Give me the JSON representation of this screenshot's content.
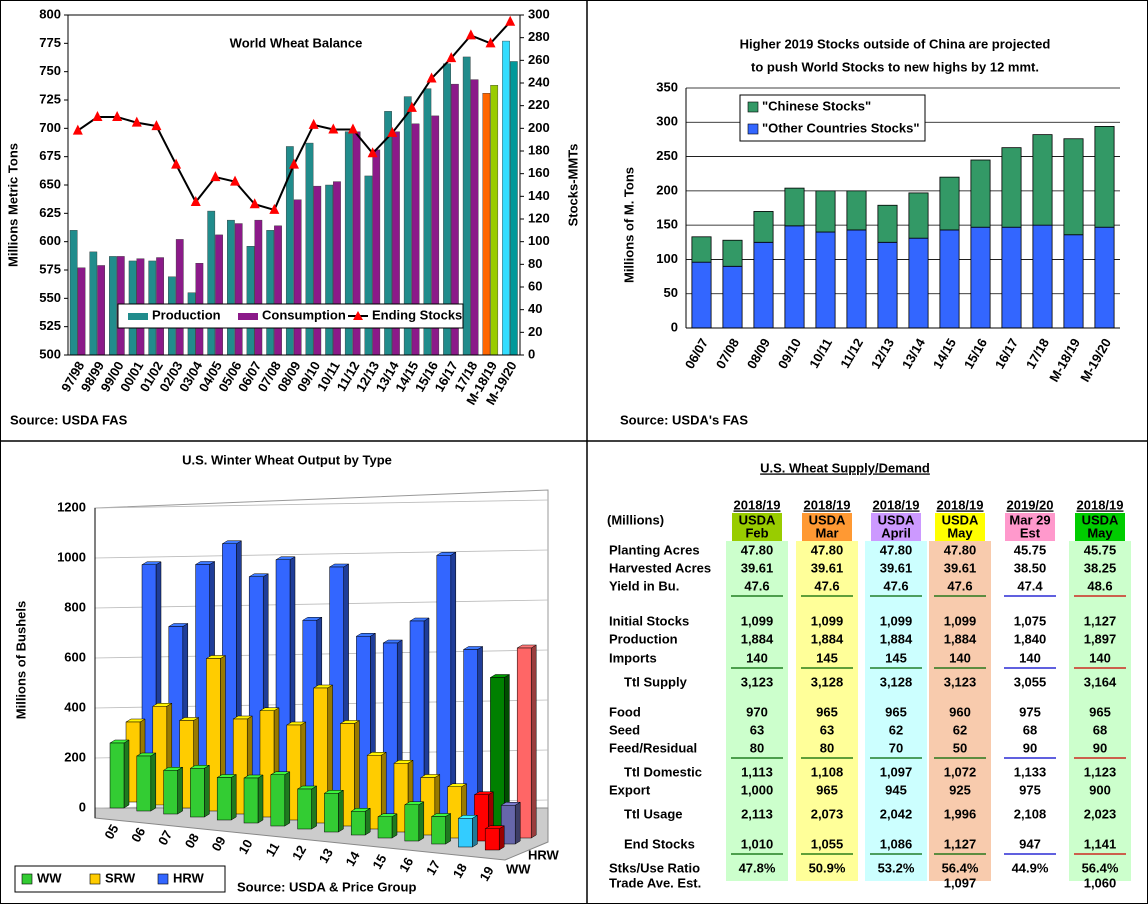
{
  "chart_data": [
    {
      "type": "bar_line",
      "title": "World Wheat Balance",
      "source": "Source: USDA FAS",
      "ylabel": "Millions Metric Tons",
      "y2label": "Stocks-MMTs",
      "categories": [
        "97/98",
        "98/99",
        "99/00",
        "00/01",
        "01/02",
        "02/03",
        "03/04",
        "04/05",
        "05/06",
        "06/07",
        "07/08",
        "08/09",
        "09/10",
        "10/11",
        "11/12",
        "12/13",
        "13/14",
        "14/15",
        "15/16",
        "16/17",
        "17/18",
        "M-18/19",
        "M-19/20"
      ],
      "series": [
        {
          "name": "Production",
          "color": "#218c8c",
          "colors": [
            "#218c8c",
            "#218c8c",
            "#218c8c",
            "#218c8c",
            "#218c8c",
            "#218c8c",
            "#218c8c",
            "#218c8c",
            "#218c8c",
            "#218c8c",
            "#218c8c",
            "#218c8c",
            "#218c8c",
            "#218c8c",
            "#218c8c",
            "#218c8c",
            "#218c8c",
            "#218c8c",
            "#218c8c",
            "#218c8c",
            "#218c8c",
            "#ff6600",
            "#33ddff"
          ],
          "values": [
            610,
            591,
            587,
            583,
            583,
            569,
            555,
            627,
            619,
            596,
            610,
            684,
            687,
            650,
            697,
            658,
            715,
            728,
            735,
            757,
            763,
            731,
            777
          ]
        },
        {
          "name": "Consumption",
          "color": "#8b1a89",
          "colors": [
            "#8b1a89",
            "#8b1a89",
            "#8b1a89",
            "#8b1a89",
            "#8b1a89",
            "#8b1a89",
            "#8b1a89",
            "#8b1a89",
            "#8b1a89",
            "#8b1a89",
            "#8b1a89",
            "#8b1a89",
            "#8b1a89",
            "#8b1a89",
            "#8b1a89",
            "#8b1a89",
            "#8b1a89",
            "#8b1a89",
            "#8b1a89",
            "#8b1a89",
            "#8b1a89",
            "#99cc00",
            "#00999a"
          ],
          "values": [
            577,
            579,
            587,
            585,
            586,
            602,
            581,
            606,
            616,
            619,
            614,
            637,
            649,
            653,
            697,
            681,
            697,
            704,
            711,
            739,
            743,
            738,
            759
          ]
        },
        {
          "name": "Ending Stocks",
          "color": "#000000",
          "marker_color": "#ff0000",
          "axis": "y2",
          "values": [
            198,
            210,
            210,
            205,
            202,
            168,
            135,
            157,
            153,
            133,
            128,
            168,
            203,
            199,
            199,
            178,
            196,
            218,
            244,
            262,
            282,
            275,
            294
          ]
        }
      ],
      "ylim": [
        500,
        800
      ],
      "yticks": [
        500,
        525,
        550,
        575,
        600,
        625,
        650,
        675,
        700,
        725,
        750,
        775,
        800
      ],
      "y2lim": [
        0,
        300
      ],
      "y2ticks": [
        0,
        20,
        40,
        60,
        80,
        100,
        120,
        140,
        160,
        180,
        200,
        220,
        240,
        260,
        280,
        300
      ],
      "legend": "bottom"
    },
    {
      "type": "stacked_bar",
      "title": [
        "Higher 2019 Stocks outside of China are projected",
        "to push World Stocks to new highs by 12 mmt."
      ],
      "source": "Source: USDA's FAS",
      "ylabel": "Millions of M. Tons",
      "categories": [
        "06/07",
        "07/08",
        "08/09",
        "09/10",
        "10/11",
        "11/12",
        "12/13",
        "13/14",
        "14/15",
        "15/16",
        "16/17",
        "17/18",
        "M-18/19",
        "M-19/20"
      ],
      "series": [
        {
          "name": "\"Chinese Stocks\"",
          "color": "#339966",
          "values": [
            37,
            38,
            45,
            55,
            60,
            57,
            54,
            66,
            77,
            98,
            116,
            132,
            140,
            147
          ]
        },
        {
          "name": "\"Other Countries Stocks\"",
          "color": "#3366ff",
          "values": [
            96,
            90,
            125,
            149,
            140,
            143,
            125,
            131,
            143,
            147,
            147,
            150,
            136,
            147
          ]
        }
      ],
      "ylim": [
        0,
        350
      ],
      "yticks": [
        0,
        50,
        100,
        150,
        200,
        250,
        300,
        350
      ],
      "grid": true,
      "legend": "top-left"
    },
    {
      "type": "bar3d",
      "title": "U.S. Winter Wheat Output by Type",
      "source": "Source: USDA & Price Group",
      "ylabel": "Millions of Bushels",
      "depth_labels": [
        "HRW",
        "WW"
      ],
      "categories": [
        "05",
        "06",
        "07",
        "08",
        "09",
        "10",
        "11",
        "12",
        "13",
        "14",
        "15",
        "16",
        "17",
        "18",
        "19"
      ],
      "series": [
        {
          "name": "WW",
          "color": "#33cc33",
          "colors": [
            "#33cc33",
            "#33cc33",
            "#33cc33",
            "#33cc33",
            "#33cc33",
            "#33cc33",
            "#33cc33",
            "#33cc33",
            "#33cc33",
            "#33cc33",
            "#33cc33",
            "#33cc33",
            "#33cc33",
            "#33ccff",
            "#ff0000"
          ],
          "values": [
            260,
            220,
            175,
            195,
            170,
            180,
            205,
            160,
            155,
            95,
            85,
            145,
            110,
            115,
            85
          ]
        },
        {
          "name": "SRW",
          "color": "#ffcc00",
          "colors": [
            "#ffcc00",
            "#ffcc00",
            "#ffcc00",
            "#ffcc00",
            "#ffcc00",
            "#ffcc00",
            "#ffcc00",
            "#ffcc00",
            "#ffcc00",
            "#ffcc00",
            "#ffcc00",
            "#ffcc00",
            "#ffcc00",
            "#ff0000",
            "#6666aa"
          ],
          "values": [
            320,
            395,
            350,
            610,
            380,
            425,
            380,
            540,
            410,
            295,
            275,
            230,
            205,
            185,
            155
          ]
        },
        {
          "name": "HRW",
          "color": "#3366ff",
          "colors": [
            "#3366ff",
            "#3366ff",
            "#3366ff",
            "#3366ff",
            "#3366ff",
            "#3366ff",
            "#3366ff",
            "#3366ff",
            "#3366ff",
            "#3366ff",
            "#3366ff",
            "#3366ff",
            "#3366ff",
            "#008000",
            "#ff6666"
          ],
          "values": [
            925,
            690,
            950,
            1045,
            925,
            1005,
            775,
            1000,
            735,
            720,
            820,
            1095,
            730,
            630,
            760
          ]
        }
      ],
      "ylim": [
        0,
        1200
      ],
      "yticks": [
        0,
        200,
        400,
        600,
        800,
        1000,
        1200
      ],
      "grid": true,
      "legend": "bottom-left"
    }
  ],
  "table": {
    "title": "U.S. Wheat Supply/Demand",
    "units": "(Millions)",
    "columns": [
      {
        "year": "2018/19",
        "source": "USDA",
        "month": "Feb"
      },
      {
        "year": "2018/19",
        "source": "USDA",
        "month": "Mar"
      },
      {
        "year": "2018/19",
        "source": "USDA",
        "month": "April"
      },
      {
        "year": "2018/19",
        "source": "USDA",
        "month": "May"
      },
      {
        "year": "2019/20",
        "source": "Mar 29",
        "month": "Est"
      },
      {
        "year": "2018/19",
        "source": "USDA",
        "month": "May"
      }
    ],
    "rows": [
      {
        "label": "Planting Acres",
        "cells": [
          "47.80",
          "47.80",
          "47.80",
          "47.80",
          "45.75",
          "45.75"
        ]
      },
      {
        "label": "Harvested Acres",
        "cells": [
          "39.61",
          "39.61",
          "39.61",
          "39.61",
          "38.50",
          "38.25"
        ]
      },
      {
        "label": "Yield in Bu.",
        "cells": [
          "47.6",
          "47.6",
          "47.6",
          "47.6",
          "47.4",
          "48.6"
        ]
      },
      {
        "label": "Initial Stocks",
        "cells": [
          "1,099",
          "1,099",
          "1,099",
          "1,099",
          "1,075",
          "1,127"
        ]
      },
      {
        "label": "Production",
        "cells": [
          "1,884",
          "1,884",
          "1,884",
          "1,884",
          "1,840",
          "1,897"
        ]
      },
      {
        "label": "Imports",
        "cells": [
          "140",
          "145",
          "145",
          "140",
          "140",
          "140"
        ]
      },
      {
        "label": "Ttl Supply",
        "cells": [
          "3,123",
          "3,128",
          "3,128",
          "3,123",
          "3,055",
          "3,164"
        ]
      },
      {
        "label": "Food",
        "cells": [
          "970",
          "965",
          "965",
          "960",
          "975",
          "965"
        ]
      },
      {
        "label": "Seed",
        "cells": [
          "63",
          "63",
          "62",
          "62",
          "68",
          "68"
        ]
      },
      {
        "label": "Feed/Residual",
        "cells": [
          "80",
          "80",
          "70",
          "50",
          "90",
          "90"
        ]
      },
      {
        "label": "Ttl Domestic",
        "cells": [
          "1,113",
          "1,108",
          "1,097",
          "1,072",
          "1,133",
          "1,123"
        ]
      },
      {
        "label": "Export",
        "cells": [
          "1,000",
          "965",
          "945",
          "925",
          "975",
          "900"
        ]
      },
      {
        "label": "Ttl Usage",
        "cells": [
          "2,113",
          "2,073",
          "2,042",
          "1,996",
          "2,108",
          "2,023"
        ]
      },
      {
        "label": "End Stocks",
        "cells": [
          "1,010",
          "1,055",
          "1,086",
          "1,127",
          "947",
          "1,141"
        ]
      },
      {
        "label": "Stks/Use Ratio",
        "cells": [
          "47.8%",
          "50.9%",
          "53.2%",
          "56.4%",
          "44.9%",
          "56.4%"
        ]
      },
      {
        "label": "Trade Ave. Est.",
        "cells": [
          null,
          null,
          null,
          "1,097",
          null,
          "1,060"
        ]
      }
    ]
  }
}
